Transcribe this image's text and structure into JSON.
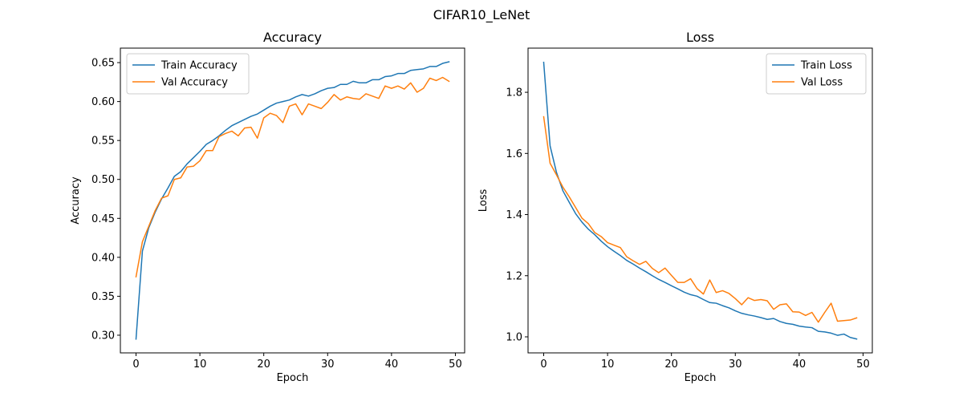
{
  "figure": {
    "title": "CIFAR10_LeNet"
  },
  "chart_data": [
    {
      "type": "line",
      "title": "Accuracy",
      "xlabel": "Epoch",
      "ylabel": "Accuracy",
      "xlim": [
        -2.45,
        51.45
      ],
      "ylim": [
        0.2773,
        0.6686
      ],
      "xticks": [
        0,
        10,
        20,
        30,
        40,
        50
      ],
      "yticks": [
        0.3,
        0.35,
        0.4,
        0.45,
        0.5,
        0.55,
        0.6,
        0.65
      ],
      "ytick_format": 2,
      "grid": false,
      "legend": "upper-left",
      "x": [
        0,
        1,
        2,
        3,
        4,
        5,
        6,
        7,
        8,
        9,
        10,
        11,
        12,
        13,
        14,
        15,
        16,
        17,
        18,
        19,
        20,
        21,
        22,
        23,
        24,
        25,
        26,
        27,
        28,
        29,
        30,
        31,
        32,
        33,
        34,
        35,
        36,
        37,
        38,
        39,
        40,
        41,
        42,
        43,
        44,
        45,
        46,
        47,
        48,
        49
      ],
      "series": [
        {
          "name": "Train Accuracy",
          "color": "#1f77b4",
          "values": [
            0.295,
            0.408,
            0.438,
            0.458,
            0.475,
            0.489,
            0.504,
            0.51,
            0.52,
            0.528,
            0.536,
            0.545,
            0.55,
            0.556,
            0.563,
            0.569,
            0.573,
            0.577,
            0.581,
            0.584,
            0.589,
            0.594,
            0.598,
            0.6,
            0.602,
            0.606,
            0.609,
            0.607,
            0.61,
            0.614,
            0.617,
            0.618,
            0.622,
            0.622,
            0.626,
            0.624,
            0.624,
            0.628,
            0.628,
            0.632,
            0.633,
            0.636,
            0.636,
            0.64,
            0.641,
            0.642,
            0.645,
            0.645,
            0.649,
            0.651
          ]
        },
        {
          "name": "Val Accuracy",
          "color": "#ff7f0e",
          "values": [
            0.375,
            0.42,
            0.44,
            0.46,
            0.476,
            0.479,
            0.5,
            0.502,
            0.516,
            0.517,
            0.524,
            0.537,
            0.537,
            0.555,
            0.559,
            0.562,
            0.556,
            0.566,
            0.567,
            0.553,
            0.579,
            0.585,
            0.582,
            0.573,
            0.594,
            0.597,
            0.583,
            0.597,
            0.594,
            0.591,
            0.599,
            0.609,
            0.602,
            0.606,
            0.604,
            0.603,
            0.61,
            0.607,
            0.604,
            0.62,
            0.617,
            0.62,
            0.616,
            0.624,
            0.612,
            0.617,
            0.63,
            0.627,
            0.631,
            0.626
          ]
        }
      ]
    },
    {
      "type": "line",
      "title": "Loss",
      "xlabel": "Epoch",
      "ylabel": "Loss",
      "xlim": [
        -2.45,
        51.45
      ],
      "ylim": [
        0.9475,
        1.9445
      ],
      "xticks": [
        0,
        10,
        20,
        30,
        40,
        50
      ],
      "yticks": [
        1.0,
        1.2,
        1.4,
        1.6,
        1.8
      ],
      "ytick_format": 1,
      "grid": false,
      "legend": "upper-right",
      "x": [
        0,
        1,
        2,
        3,
        4,
        5,
        6,
        7,
        8,
        9,
        10,
        11,
        12,
        13,
        14,
        15,
        16,
        17,
        18,
        19,
        20,
        21,
        22,
        23,
        24,
        25,
        26,
        27,
        28,
        29,
        30,
        31,
        32,
        33,
        34,
        35,
        36,
        37,
        38,
        39,
        40,
        41,
        42,
        43,
        44,
        45,
        46,
        47,
        48,
        49
      ],
      "series": [
        {
          "name": "Train Loss",
          "color": "#1f77b4",
          "values": [
            1.898,
            1.625,
            1.538,
            1.478,
            1.44,
            1.403,
            1.375,
            1.352,
            1.334,
            1.313,
            1.295,
            1.28,
            1.266,
            1.25,
            1.238,
            1.225,
            1.213,
            1.2,
            1.188,
            1.178,
            1.167,
            1.157,
            1.146,
            1.138,
            1.133,
            1.122,
            1.112,
            1.11,
            1.102,
            1.095,
            1.085,
            1.077,
            1.072,
            1.068,
            1.063,
            1.057,
            1.06,
            1.05,
            1.044,
            1.041,
            1.035,
            1.032,
            1.03,
            1.018,
            1.016,
            1.012,
            1.005,
            1.009,
            0.998,
            0.993
          ]
        },
        {
          "name": "Val Loss",
          "color": "#ff7f0e",
          "values": [
            1.72,
            1.568,
            1.53,
            1.49,
            1.458,
            1.423,
            1.388,
            1.37,
            1.341,
            1.328,
            1.308,
            1.3,
            1.292,
            1.262,
            1.249,
            1.237,
            1.247,
            1.224,
            1.21,
            1.225,
            1.201,
            1.178,
            1.178,
            1.19,
            1.158,
            1.14,
            1.186,
            1.145,
            1.151,
            1.142,
            1.125,
            1.105,
            1.128,
            1.119,
            1.122,
            1.118,
            1.09,
            1.105,
            1.108,
            1.082,
            1.081,
            1.07,
            1.08,
            1.048,
            1.08,
            1.11,
            1.051,
            1.053,
            1.055,
            1.062
          ]
        }
      ]
    }
  ]
}
